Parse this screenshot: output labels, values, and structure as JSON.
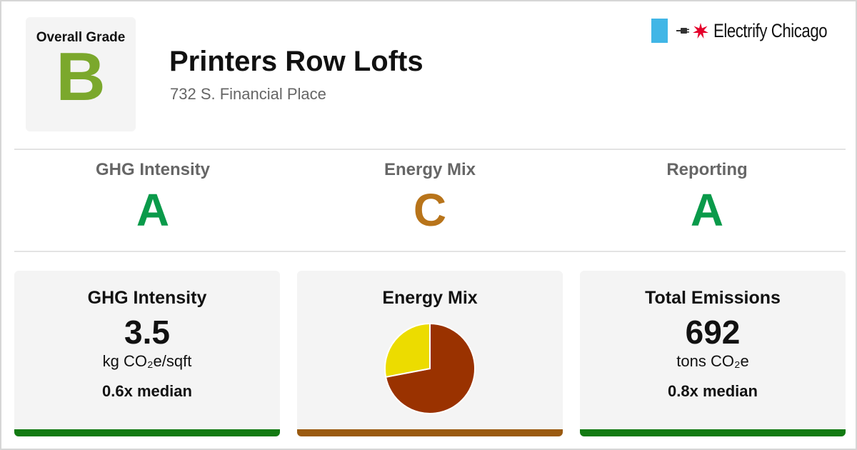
{
  "overall": {
    "label": "Overall Grade",
    "grade": "B",
    "color": "#7ba82c"
  },
  "building": {
    "name": "Printers Row Lofts",
    "address": "732 S. Financial Place"
  },
  "logo": {
    "text": "Electrify Chicago",
    "bar_color": "#41b6e6",
    "star_color": "#e4002b"
  },
  "grades": [
    {
      "label": "GHG Intensity",
      "grade": "A",
      "color": "#0a9a4a"
    },
    {
      "label": "Energy Mix",
      "grade": "C",
      "color": "#b8741a"
    },
    {
      "label": "Reporting",
      "grade": "A",
      "color": "#0a9a4a"
    }
  ],
  "cards": {
    "ghg": {
      "title": "GHG Intensity",
      "value": "3.5",
      "unit": "kg CO₂e/sqft",
      "median": "0.6x median",
      "bar_color": "#127a12"
    },
    "mix": {
      "title": "Energy Mix",
      "bar_color": "#9a5a10"
    },
    "total": {
      "title": "Total Emissions",
      "value": "692",
      "unit": "tons CO₂e",
      "median": "0.8x median",
      "bar_color": "#127a12"
    }
  },
  "chart_data": {
    "type": "pie",
    "values": [
      72,
      28
    ],
    "colors": [
      "#9a3200",
      "#ecdc00"
    ]
  }
}
